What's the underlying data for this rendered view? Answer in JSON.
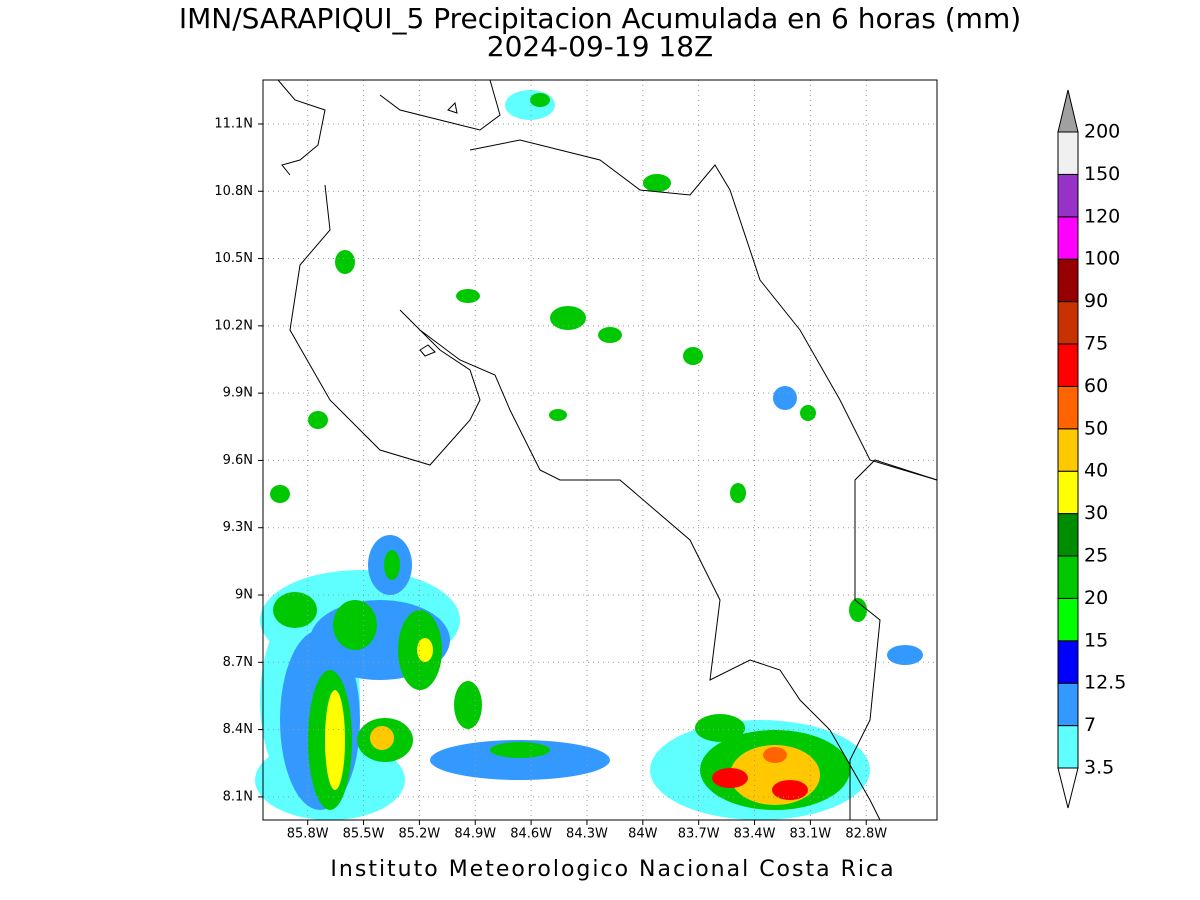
{
  "title": "IMN/SARAPIQUI_5 Precipitacion Acumulada en 6 horas (mm)",
  "subtitle": "2024-09-19 18Z",
  "map": {
    "xlim": [
      -86.04,
      -82.42
    ],
    "ylim": [
      7.997,
      11.296
    ],
    "xticks": [
      {
        "value": -85.8,
        "label": "85.8W"
      },
      {
        "value": -85.5,
        "label": "85.5W"
      },
      {
        "value": -85.2,
        "label": "85.2W"
      },
      {
        "value": -84.9,
        "label": "84.9W"
      },
      {
        "value": -84.6,
        "label": "84.6W"
      },
      {
        "value": -84.3,
        "label": "84.3W"
      },
      {
        "value": -84,
        "label": "84W"
      },
      {
        "value": -83.7,
        "label": "83.7W"
      },
      {
        "value": -83.4,
        "label": "83.4W"
      },
      {
        "value": -83.1,
        "label": "83.1W"
      },
      {
        "value": -82.8,
        "label": "82.8W"
      }
    ],
    "yticks": [
      {
        "value": 8.1,
        "label": "8.1N"
      },
      {
        "value": 8.4,
        "label": "8.4N"
      },
      {
        "value": 8.7,
        "label": "8.7N"
      },
      {
        "value": 9,
        "label": "9N"
      },
      {
        "value": 9.3,
        "label": "9.3N"
      },
      {
        "value": 9.6,
        "label": "9.6N"
      },
      {
        "value": 9.9,
        "label": "9.9N"
      },
      {
        "value": 10.2,
        "label": "10.2N"
      },
      {
        "value": 10.5,
        "label": "10.5N"
      },
      {
        "value": 10.8,
        "label": "10.8N"
      },
      {
        "value": 11.1,
        "label": "11.1N"
      }
    ]
  },
  "colorbar": {
    "levels": [
      3.5,
      7,
      12.5,
      15,
      20,
      25,
      30,
      40,
      50,
      60,
      75,
      90,
      100,
      120,
      150,
      200
    ],
    "colors": [
      "#ffffff",
      "#5fffff",
      "#3399ff",
      "#0000ff",
      "#00ff00",
      "#00c800",
      "#008c00",
      "#ffff00",
      "#ffc800",
      "#ff6400",
      "#ff0000",
      "#c83200",
      "#960000",
      "#ff00ff",
      "#9632c8",
      "#f0f0f0",
      "#a0a0a0"
    ]
  },
  "credit": "Instituto Meteorologico Nacional Costa Rica"
}
